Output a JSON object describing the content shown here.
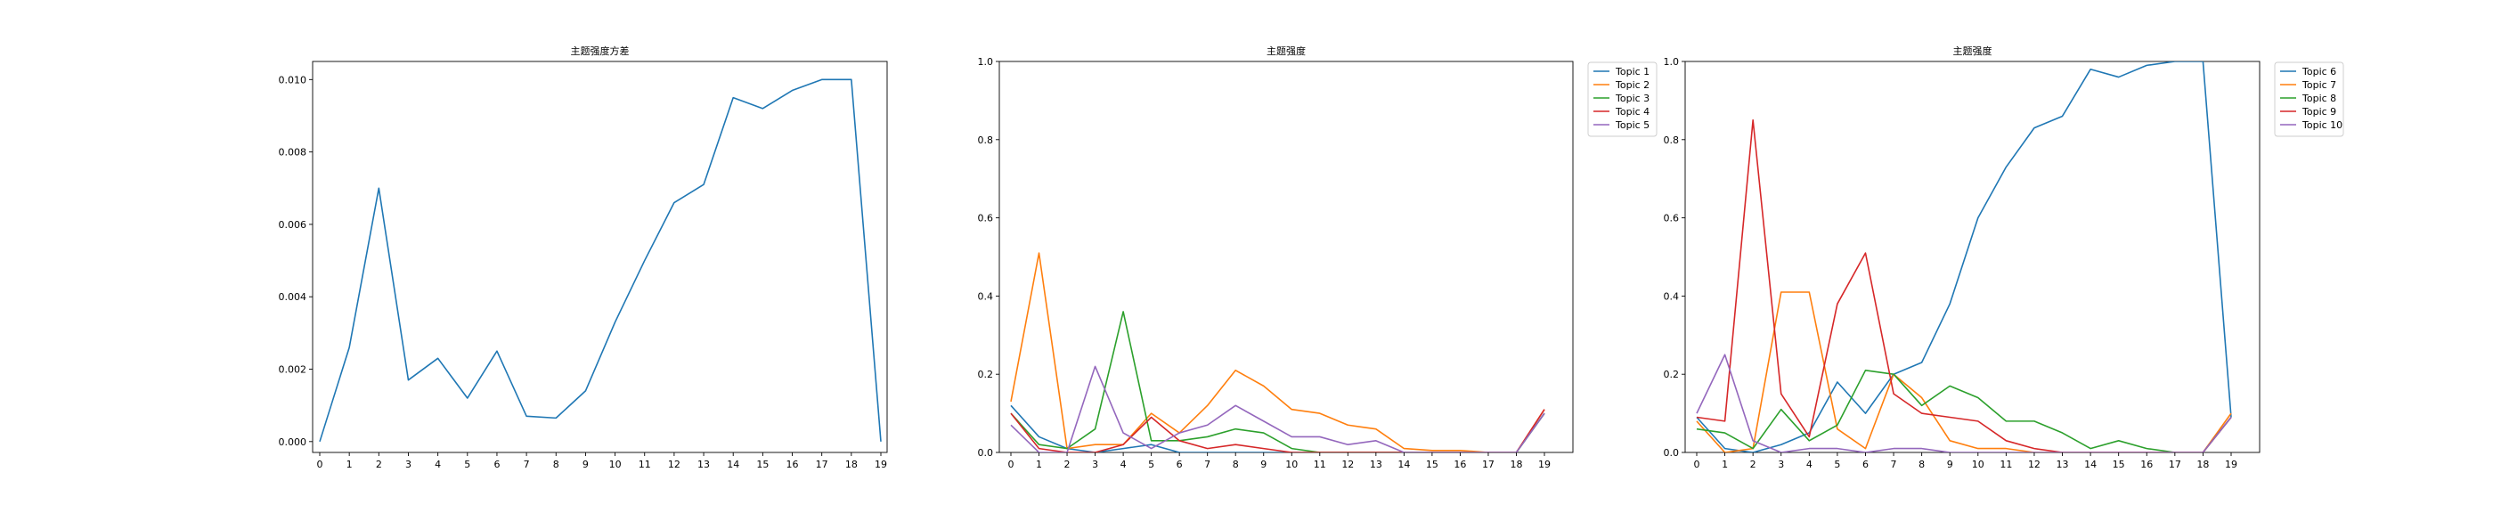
{
  "chart_data": [
    {
      "type": "line",
      "title": "主题强度方差",
      "xlabel": "",
      "ylabel": "",
      "x": [
        0,
        1,
        2,
        3,
        4,
        5,
        6,
        7,
        8,
        9,
        10,
        11,
        12,
        13,
        14,
        15,
        16,
        17,
        18,
        19
      ],
      "x_ticks": [
        "0",
        "1",
        "2",
        "3",
        "4",
        "5",
        "6",
        "7",
        "8",
        "9",
        "10",
        "11",
        "12",
        "13",
        "14",
        "15",
        "16",
        "17",
        "18",
        "19"
      ],
      "ylim": [
        -0.0003,
        0.0105
      ],
      "y_ticks": [
        "0.000",
        "0.002",
        "0.004",
        "0.006",
        "0.008",
        "0.010"
      ],
      "y_tick_values": [
        0.0,
        0.002,
        0.004,
        0.006,
        0.008,
        0.01
      ],
      "grid": false,
      "legend": null,
      "series": [
        {
          "color": "#1f77b4",
          "values": [
            0.0,
            0.0026,
            0.007,
            0.0017,
            0.0023,
            0.0012,
            0.0025,
            0.0007,
            0.00065,
            0.0014,
            0.0033,
            0.005,
            0.0066,
            0.0071,
            0.0095,
            0.0092,
            0.0097,
            0.01,
            0.01,
            0.0
          ]
        }
      ]
    },
    {
      "type": "line",
      "title": "主题强度",
      "xlabel": "",
      "ylabel": "",
      "x": [
        0,
        1,
        2,
        3,
        4,
        5,
        6,
        7,
        8,
        9,
        10,
        11,
        12,
        13,
        14,
        15,
        16,
        17,
        18,
        19
      ],
      "x_ticks": [
        "0",
        "1",
        "2",
        "3",
        "4",
        "5",
        "6",
        "7",
        "8",
        "9",
        "10",
        "11",
        "12",
        "13",
        "14",
        "15",
        "16",
        "17",
        "18",
        "19"
      ],
      "ylim": [
        0,
        1.0
      ],
      "y_ticks": [
        "0.0",
        "0.2",
        "0.4",
        "0.6",
        "0.8",
        "1.0"
      ],
      "y_tick_values": [
        0.0,
        0.2,
        0.4,
        0.6,
        0.8,
        1.0
      ],
      "grid": false,
      "legend": "outside-right-top",
      "series": [
        {
          "name": "Topic 1",
          "color": "#1f77b4",
          "values": [
            0.12,
            0.04,
            0.01,
            0.0,
            0.01,
            0.02,
            0.0,
            0.0,
            0.0,
            0.0,
            0.0,
            0.0,
            0.0,
            0.0,
            0.0,
            0.0,
            0.0,
            0.0,
            0.0,
            0.1
          ]
        },
        {
          "name": "Topic 2",
          "color": "#ff7f0e",
          "values": [
            0.13,
            0.51,
            0.01,
            0.02,
            0.02,
            0.1,
            0.05,
            0.12,
            0.21,
            0.17,
            0.11,
            0.1,
            0.07,
            0.06,
            0.01,
            0.005,
            0.005,
            0.0,
            0.0,
            0.11
          ]
        },
        {
          "name": "Topic 3",
          "color": "#2ca02c",
          "values": [
            0.1,
            0.02,
            0.01,
            0.06,
            0.36,
            0.03,
            0.03,
            0.04,
            0.06,
            0.05,
            0.01,
            0.0,
            0.0,
            0.0,
            0.0,
            0.0,
            0.0,
            0.0,
            0.0,
            0.1
          ]
        },
        {
          "name": "Topic 4",
          "color": "#d62728",
          "values": [
            0.1,
            0.01,
            0.0,
            0.0,
            0.02,
            0.09,
            0.03,
            0.01,
            0.02,
            0.01,
            0.0,
            0.0,
            0.0,
            0.0,
            0.0,
            0.0,
            0.0,
            0.0,
            0.0,
            0.11
          ]
        },
        {
          "name": "Topic 5",
          "color": "#9467bd",
          "values": [
            0.07,
            0.0,
            0.0,
            0.22,
            0.05,
            0.01,
            0.05,
            0.07,
            0.12,
            0.08,
            0.04,
            0.04,
            0.02,
            0.03,
            0.0,
            0.0,
            0.0,
            0.0,
            0.0,
            0.1
          ]
        }
      ]
    },
    {
      "type": "line",
      "title": "主题强度",
      "xlabel": "",
      "ylabel": "",
      "x": [
        0,
        1,
        2,
        3,
        4,
        5,
        6,
        7,
        8,
        9,
        10,
        11,
        12,
        13,
        14,
        15,
        16,
        17,
        18,
        19
      ],
      "x_ticks": [
        "0",
        "1",
        "2",
        "3",
        "4",
        "5",
        "6",
        "7",
        "8",
        "9",
        "10",
        "11",
        "12",
        "13",
        "14",
        "15",
        "16",
        "17",
        "18",
        "19"
      ],
      "ylim": [
        0,
        1.0
      ],
      "y_ticks": [
        "0.0",
        "0.2",
        "0.4",
        "0.6",
        "0.8",
        "1.0"
      ],
      "y_tick_values": [
        0.0,
        0.2,
        0.4,
        0.6,
        0.8,
        1.0
      ],
      "grid": false,
      "legend": "outside-right-top",
      "series": [
        {
          "name": "Topic 6",
          "color": "#1f77b4",
          "values": [
            0.09,
            0.01,
            0.0,
            0.02,
            0.05,
            0.18,
            0.1,
            0.2,
            0.23,
            0.38,
            0.6,
            0.73,
            0.83,
            0.86,
            0.98,
            0.96,
            0.99,
            1.0,
            1.0,
            0.09
          ]
        },
        {
          "name": "Topic 7",
          "color": "#ff7f0e",
          "values": [
            0.08,
            0.0,
            0.01,
            0.41,
            0.41,
            0.06,
            0.01,
            0.2,
            0.14,
            0.03,
            0.01,
            0.01,
            0.0,
            0.0,
            0.0,
            0.0,
            0.0,
            0.0,
            0.0,
            0.1
          ]
        },
        {
          "name": "Topic 8",
          "color": "#2ca02c",
          "values": [
            0.06,
            0.05,
            0.01,
            0.11,
            0.03,
            0.07,
            0.21,
            0.2,
            0.12,
            0.17,
            0.14,
            0.08,
            0.08,
            0.05,
            0.01,
            0.03,
            0.01,
            0.0,
            0.0,
            0.09
          ]
        },
        {
          "name": "Topic 9",
          "color": "#d62728",
          "values": [
            0.09,
            0.08,
            0.85,
            0.15,
            0.04,
            0.38,
            0.51,
            0.15,
            0.1,
            0.09,
            0.08,
            0.03,
            0.01,
            0.0,
            0.0,
            0.0,
            0.0,
            0.0,
            0.0,
            0.09
          ]
        },
        {
          "name": "Topic 10",
          "color": "#9467bd",
          "values": [
            0.1,
            0.25,
            0.03,
            0.0,
            0.01,
            0.01,
            0.0,
            0.01,
            0.01,
            0.0,
            0.0,
            0.0,
            0.0,
            0.0,
            0.0,
            0.0,
            0.0,
            0.0,
            0.0,
            0.09
          ]
        }
      ]
    }
  ]
}
